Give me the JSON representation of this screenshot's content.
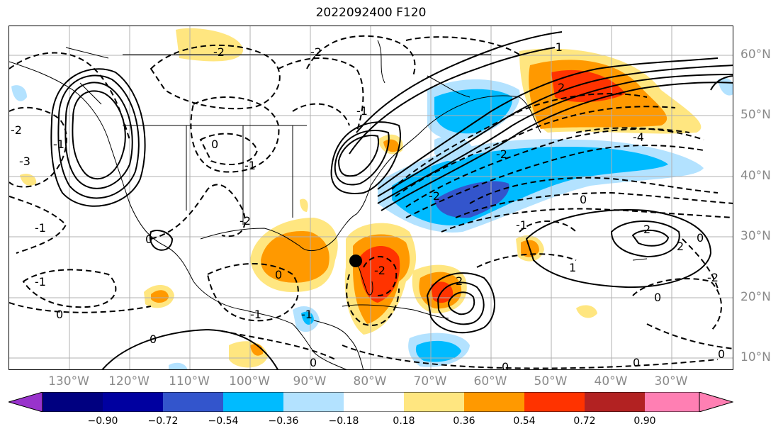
{
  "title": "2022092400 F120",
  "lat_labels": [
    "60°N",
    "50°N",
    "40°N",
    "30°N",
    "20°N",
    "10°N"
  ],
  "lon_labels": [
    "130°W",
    "120°W",
    "110°W",
    "100°W",
    "90°W",
    "80°W",
    "70°W",
    "60°W",
    "50°W",
    "40°W",
    "30°W"
  ],
  "colorbar": {
    "ticks": [
      "−0.90",
      "−0.72",
      "−0.54",
      "−0.36",
      "−0.18",
      "0.18",
      "0.36",
      "0.54",
      "0.72",
      "0.90"
    ],
    "colors": {
      "under": "#9933cc",
      "lt_-0.90": "#000080",
      "lt_-0.72": "#0000a0",
      "lt_-0.54": "#3355cc",
      "lt_-0.36": "#00bbff",
      "lt_-0.18": "#b3e2ff",
      "neutral": "#ffffff",
      "gt_0.18": "#ffe680",
      "gt_0.36": "#ff9900",
      "gt_0.54": "#ff3300",
      "gt_0.72": "#b22222",
      "over": "#ff7fb3"
    }
  },
  "contour_labels": [
    "-2",
    "-2",
    "-2",
    "-1",
    "-3",
    "-1",
    "0",
    "-1",
    "2",
    "-2",
    "-2",
    "-2",
    "-4",
    "0",
    "-1",
    "0",
    "2",
    "2",
    "1",
    "0",
    "-1",
    "-1",
    "0",
    "0",
    "0",
    "-1",
    "0",
    "0",
    "-2",
    "2",
    "-2",
    "0",
    "0",
    "-1",
    "-1",
    "0"
  ],
  "marker": "storm-position-dot"
}
